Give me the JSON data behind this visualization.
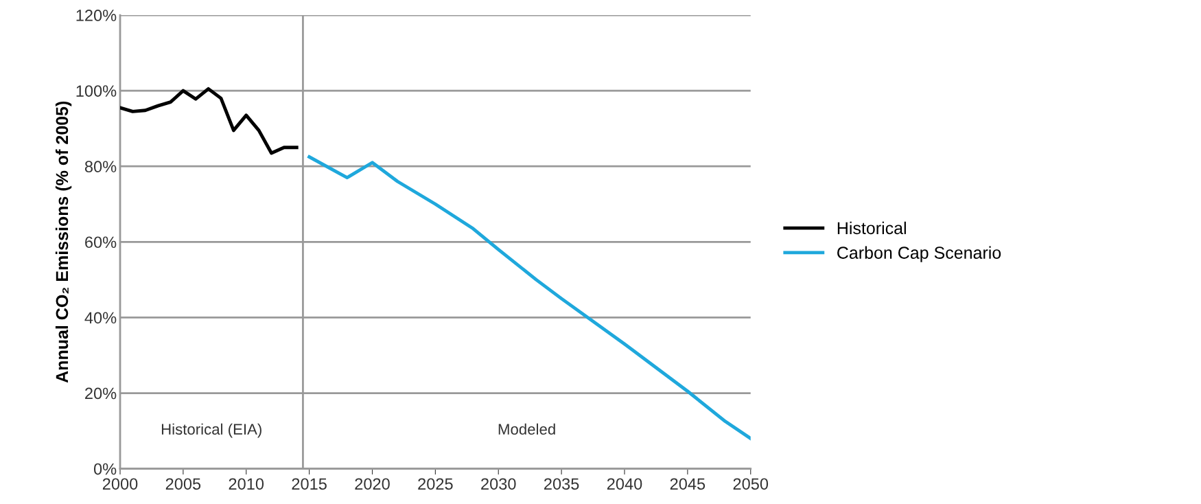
{
  "chart_data": {
    "type": "line",
    "ylabel": "Annual CO₂ Emissions (% of 2005)",
    "series": [
      {
        "name": "Historical",
        "color": "#000000",
        "x": [
          2000,
          2001,
          2002,
          2003,
          2004,
          2005,
          2006,
          2007,
          2008,
          2009,
          2010,
          2011,
          2012,
          2013,
          2014
        ],
        "values": [
          95.5,
          94.5,
          94.8,
          96,
          97,
          100,
          97.8,
          100.5,
          98,
          89.5,
          93.5,
          89.5,
          83.5,
          85,
          85
        ]
      },
      {
        "name": "Carbon Cap Scenario",
        "color": "#1fa8dc",
        "x": [
          2015,
          2018,
          2020,
          2022,
          2025,
          2028,
          2030,
          2033,
          2035,
          2040,
          2042,
          2045,
          2048,
          2050
        ],
        "values": [
          82.5,
          77,
          81,
          76,
          70,
          63.5,
          58,
          50,
          45,
          33,
          28,
          20.5,
          12.5,
          8
        ]
      }
    ],
    "xlim": [
      2000,
      2050
    ],
    "xticks": [
      2000,
      2005,
      2010,
      2015,
      2020,
      2025,
      2030,
      2035,
      2040,
      2045,
      2050
    ],
    "ylim": [
      0,
      120
    ],
    "yticks": [
      {
        "value": 0,
        "label": "0%"
      },
      {
        "value": 20,
        "label": "20%"
      },
      {
        "value": 40,
        "label": "40%"
      },
      {
        "value": 60,
        "label": "60%"
      },
      {
        "value": 80,
        "label": "80%"
      },
      {
        "value": 100,
        "label": "100%"
      },
      {
        "value": 120,
        "label": "120%"
      }
    ],
    "ref_lines": [
      {
        "axis": "x",
        "value": 2014.5,
        "color": "#999999"
      }
    ],
    "annotations": [
      "Historical (EIA)",
      "Modeled"
    ],
    "grid": "y",
    "legend": "right",
    "marker": "none",
    "line_style": "solid"
  }
}
